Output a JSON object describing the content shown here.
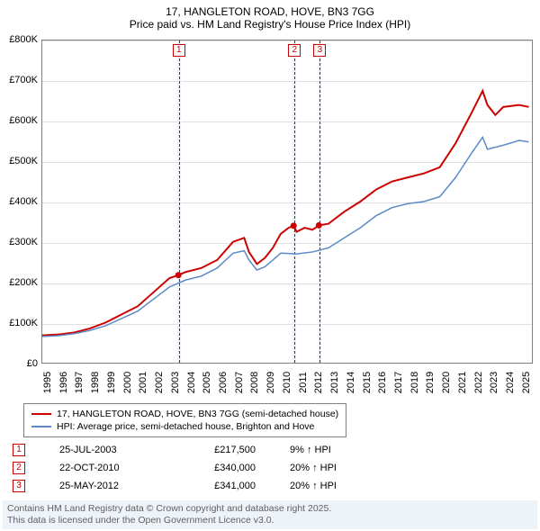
{
  "title": {
    "line1": "17, HANGLETON ROAD, HOVE, BN3 7GG",
    "line2": "Price paid vs. HM Land Registry's House Price Index (HPI)",
    "fontsize": 12
  },
  "chart": {
    "type": "line",
    "background_color": "#ffffff",
    "grid_color": "#e0e0e0",
    "border_color": "#808080",
    "xlim": [
      1995,
      2025.8
    ],
    "ylim": [
      0,
      800000
    ],
    "ytick_step": 100000,
    "ytick_labels": [
      "£0",
      "£100K",
      "£200K",
      "£300K",
      "£400K",
      "£500K",
      "£600K",
      "£700K",
      "£800K"
    ],
    "xtick_step": 1,
    "xtick_labels": [
      "1995",
      "1996",
      "1997",
      "1998",
      "1999",
      "2000",
      "2001",
      "2002",
      "2003",
      "2004",
      "2005",
      "2006",
      "2007",
      "2008",
      "2009",
      "2010",
      "2011",
      "2012",
      "2013",
      "2014",
      "2015",
      "2016",
      "2017",
      "2018",
      "2019",
      "2020",
      "2021",
      "2022",
      "2023",
      "2024",
      "2025"
    ],
    "vertical_bands": [
      {
        "x": 2003.56,
        "color": "#eef3fa",
        "width": 0.2
      },
      {
        "x": 2010.81,
        "color": "#eef3fa",
        "width": 0.2
      },
      {
        "x": 2012.4,
        "color": "#eef3fa",
        "width": 0.2
      }
    ],
    "vertical_lines": [
      {
        "x": 2003.56,
        "color": "#cc0000",
        "dash": "3,3",
        "label": "1"
      },
      {
        "x": 2010.81,
        "color": "#cc0000",
        "dash": "3,3",
        "label": "2"
      },
      {
        "x": 2012.4,
        "color": "#cc0000",
        "dash": "3,3",
        "label": "3"
      }
    ],
    "series": [
      {
        "name": "17, HANGLETON ROAD, HOVE, BN3 7GG (semi-detached house)",
        "color": "#cc0000",
        "line_width": 2,
        "data": [
          [
            1995,
            68000
          ],
          [
            1996,
            70000
          ],
          [
            1997,
            75000
          ],
          [
            1998,
            85000
          ],
          [
            1999,
            100000
          ],
          [
            2000,
            120000
          ],
          [
            2001,
            140000
          ],
          [
            2002,
            175000
          ],
          [
            2003,
            210000
          ],
          [
            2003.56,
            217500
          ],
          [
            2004,
            225000
          ],
          [
            2005,
            235000
          ],
          [
            2006,
            255000
          ],
          [
            2007,
            300000
          ],
          [
            2007.7,
            310000
          ],
          [
            2008,
            275000
          ],
          [
            2008.5,
            245000
          ],
          [
            2009,
            260000
          ],
          [
            2009.5,
            285000
          ],
          [
            2010,
            320000
          ],
          [
            2010.5,
            335000
          ],
          [
            2010.81,
            340000
          ],
          [
            2011,
            325000
          ],
          [
            2011.5,
            335000
          ],
          [
            2012,
            330000
          ],
          [
            2012.4,
            341000
          ],
          [
            2013,
            345000
          ],
          [
            2014,
            375000
          ],
          [
            2015,
            400000
          ],
          [
            2016,
            430000
          ],
          [
            2017,
            450000
          ],
          [
            2018,
            460000
          ],
          [
            2019,
            470000
          ],
          [
            2020,
            485000
          ],
          [
            2021,
            545000
          ],
          [
            2022,
            620000
          ],
          [
            2022.7,
            675000
          ],
          [
            2023,
            640000
          ],
          [
            2023.5,
            615000
          ],
          [
            2024,
            635000
          ],
          [
            2025,
            640000
          ],
          [
            2025.6,
            635000
          ]
        ],
        "markers": [
          {
            "x": 2003.56,
            "y": 217500
          },
          {
            "x": 2010.81,
            "y": 340000
          },
          {
            "x": 2012.4,
            "y": 341000
          }
        ]
      },
      {
        "name": "HPI: Average price, semi-detached house, Brighton and Hove",
        "color": "#5b8ac6",
        "line_width": 1.5,
        "data": [
          [
            1995,
            65000
          ],
          [
            1996,
            67000
          ],
          [
            1997,
            72000
          ],
          [
            1998,
            80000
          ],
          [
            1999,
            92000
          ],
          [
            2000,
            110000
          ],
          [
            2001,
            128000
          ],
          [
            2002,
            158000
          ],
          [
            2003,
            188000
          ],
          [
            2004,
            205000
          ],
          [
            2005,
            215000
          ],
          [
            2006,
            235000
          ],
          [
            2007,
            272000
          ],
          [
            2007.7,
            278000
          ],
          [
            2008,
            255000
          ],
          [
            2008.5,
            230000
          ],
          [
            2009,
            238000
          ],
          [
            2009.5,
            255000
          ],
          [
            2010,
            272000
          ],
          [
            2011,
            270000
          ],
          [
            2012,
            275000
          ],
          [
            2013,
            285000
          ],
          [
            2014,
            310000
          ],
          [
            2015,
            335000
          ],
          [
            2016,
            365000
          ],
          [
            2017,
            385000
          ],
          [
            2018,
            395000
          ],
          [
            2019,
            400000
          ],
          [
            2020,
            412000
          ],
          [
            2021,
            460000
          ],
          [
            2022,
            520000
          ],
          [
            2022.7,
            560000
          ],
          [
            2023,
            530000
          ],
          [
            2024,
            540000
          ],
          [
            2025,
            552000
          ],
          [
            2025.6,
            548000
          ]
        ]
      }
    ]
  },
  "legend": {
    "position": "below",
    "border_color": "#808080",
    "items": [
      {
        "color": "#cc0000",
        "label": "17, HANGLETON ROAD, HOVE, BN3 7GG (semi-detached house)"
      },
      {
        "color": "#5b8ac6",
        "label": "HPI: Average price, semi-detached house, Brighton and Hove"
      }
    ]
  },
  "events": [
    {
      "index": "1",
      "date": "25-JUL-2003",
      "price": "£217,500",
      "delta": "9% ↑ HPI"
    },
    {
      "index": "2",
      "date": "22-OCT-2010",
      "price": "£340,000",
      "delta": "20% ↑ HPI"
    },
    {
      "index": "3",
      "date": "25-MAY-2012",
      "price": "£341,000",
      "delta": "20% ↑ HPI"
    }
  ],
  "footer": {
    "background_color": "#eef3fa",
    "text_color": "#606060",
    "line1": "Contains HM Land Registry data © Crown copyright and database right 2025.",
    "line2": "This data is licensed under the Open Government Licence v3.0."
  }
}
